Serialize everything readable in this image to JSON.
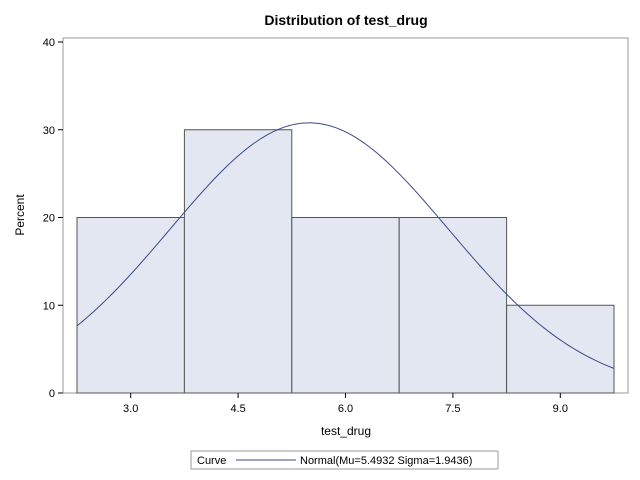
{
  "chart_data": {
    "type": "bar",
    "title": "Distribution of test_drug",
    "xlabel": "test_drug",
    "ylabel": "Percent",
    "xlim": [
      2.25,
      9.75
    ],
    "ylim": [
      0,
      40
    ],
    "xticks": [
      "3.0",
      "4.5",
      "6.0",
      "7.5",
      "9.0"
    ],
    "xtick_values": [
      3.0,
      4.5,
      6.0,
      7.5,
      9.0
    ],
    "yticks": [
      0,
      10,
      20,
      30,
      40
    ],
    "bins": [
      {
        "x0": 2.25,
        "x1": 3.75,
        "value": 20
      },
      {
        "x0": 3.75,
        "x1": 5.25,
        "value": 30
      },
      {
        "x0": 5.25,
        "x1": 6.75,
        "value": 20
      },
      {
        "x0": 6.75,
        "x1": 8.25,
        "value": 20
      },
      {
        "x0": 8.25,
        "x1": 9.75,
        "value": 10
      }
    ],
    "curve": {
      "type": "normal",
      "mu": 5.4932,
      "sigma": 1.9436,
      "bin_width": 1.5
    },
    "legend": {
      "title": "Curve",
      "label": "Normal(Mu=5.4932 Sigma=1.9436)",
      "placement": "bottom"
    },
    "colors": {
      "bar_fill": "#e3e7f1",
      "bar_stroke": "#555555",
      "curve": "#3a4a8c",
      "frame": "#999999"
    }
  }
}
